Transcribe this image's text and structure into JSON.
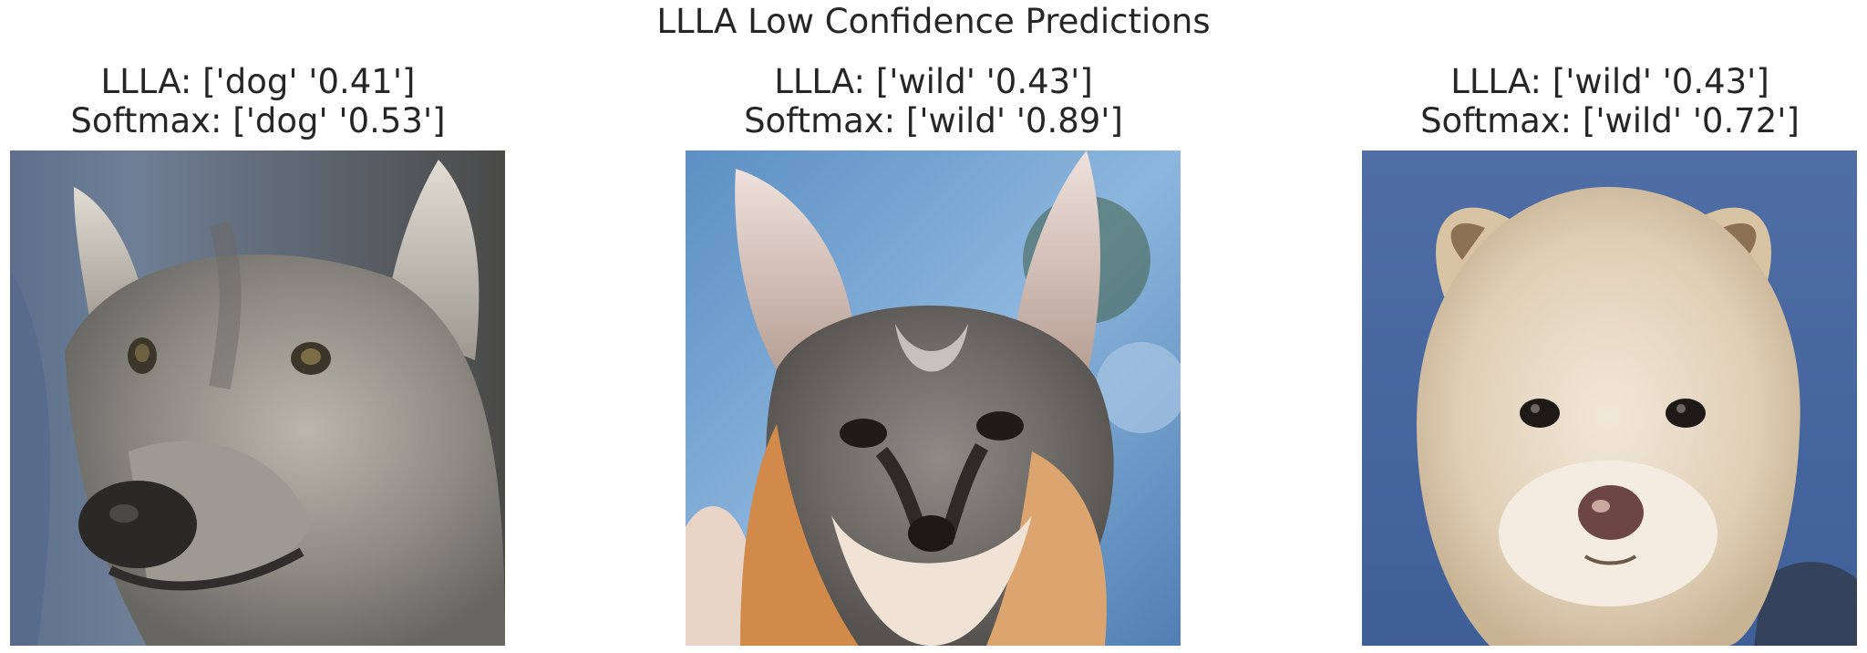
{
  "figure": {
    "title": "LLLA Low Confidence Predictions"
  },
  "panels": [
    {
      "llla_label": "LLLA: ['dog' '0.41']",
      "softmax_label": "Softmax: ['dog' '0.53']",
      "image_subject": "wolf-like dog"
    },
    {
      "llla_label": "LLLA: ['wild' '0.43']",
      "softmax_label": "Softmax: ['wild' '0.89']",
      "image_subject": "fox"
    },
    {
      "llla_label": "LLLA: ['wild' '0.43']",
      "softmax_label": "Softmax: ['wild' '0.72']",
      "image_subject": "fluffy puppy"
    }
  ]
}
